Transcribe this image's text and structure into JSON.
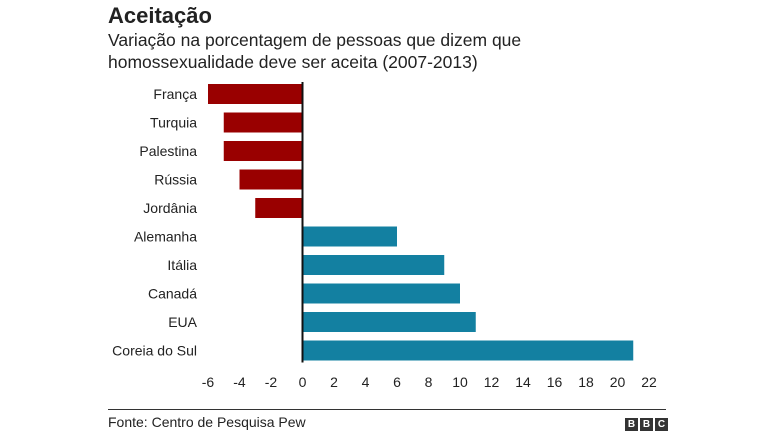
{
  "header": {
    "title": "Aceitação",
    "subtitle": "Variação na porcentagem de pessoas que dizem que homossexualidade deve ser aceita (2007-2013)"
  },
  "footer": {
    "source": "Fonte: Centro de Pesquisa Pew",
    "logo": "BBC"
  },
  "colors": {
    "negative": "#990000",
    "positive": "#1380A1"
  },
  "chart_data": {
    "type": "bar",
    "orientation": "horizontal",
    "title": "Aceitação",
    "categories": [
      "França",
      "Turquia",
      "Palestina",
      "Rússia",
      "Jordânia",
      "Alemanha",
      "Itália",
      "Canadá",
      "EUA",
      "Coreia do Sul"
    ],
    "values": [
      -6,
      -5,
      -5,
      -4,
      -3,
      6,
      9,
      10,
      11,
      21
    ],
    "xlim": [
      -6,
      22
    ],
    "xticks": [
      -6,
      -4,
      -2,
      0,
      2,
      4,
      6,
      8,
      10,
      12,
      14,
      16,
      18,
      20,
      22
    ],
    "grid": false
  }
}
